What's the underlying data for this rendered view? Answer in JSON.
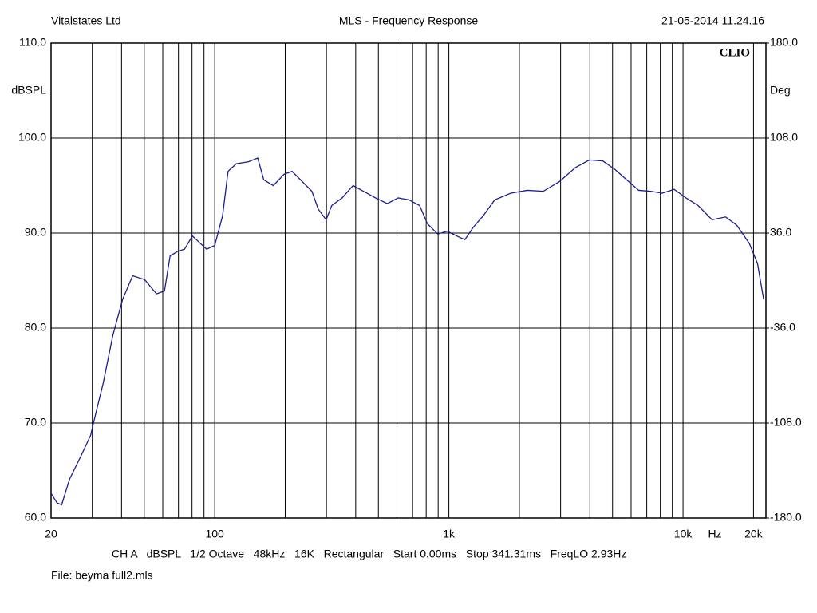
{
  "chart_data": {
    "type": "line",
    "title": "MLS - Frequency Response",
    "company": "Vitalstates Ltd",
    "timestamp": "21-05-2014 11.24.16",
    "logo": "CLIO",
    "ylabel": "dBSPL",
    "y2label": "Deg",
    "xlabel": "Hz",
    "footer": "CH A   dBSPL   1/2 Octave   48kHz   16K   Rectangular   Start 0.00ms   Stop 341.31ms   FreqLO 2.93Hz",
    "file": "File: beyma full2.mls",
    "xscale": "log",
    "grid": true,
    "xlim": [
      20,
      22600
    ],
    "xticks": [
      20,
      100,
      {
        "value": 1000,
        "label": "1k"
      },
      {
        "value": 10000,
        "label": "10k"
      },
      {
        "value": 20000,
        "label": "20k"
      }
    ],
    "xgrid_minor": [
      30,
      40,
      50,
      60,
      70,
      80,
      90,
      200,
      300,
      400,
      500,
      600,
      700,
      800,
      900,
      2000,
      3000,
      4000,
      5000,
      6000,
      7000,
      8000,
      9000
    ],
    "ylim": [
      60,
      110
    ],
    "yticks": [
      {
        "value": 110,
        "label": "110.0"
      },
      {
        "value": 100,
        "label": "100.0"
      },
      {
        "value": 90,
        "label": "90.0"
      },
      {
        "value": 80,
        "label": "80.0"
      },
      {
        "value": 70,
        "label": "70.0"
      },
      {
        "value": 60,
        "label": "60.0"
      }
    ],
    "y2lim": [
      -180,
      180
    ],
    "y2ticks": [
      {
        "value": 180,
        "label": "180.0"
      },
      {
        "value": 108,
        "label": "108.0"
      },
      {
        "value": 36,
        "label": "36.0"
      },
      {
        "value": -36,
        "label": "-36.0"
      },
      {
        "value": -108,
        "label": "-108.0"
      },
      {
        "value": -180,
        "label": "-180.0"
      }
    ],
    "x": [
      20,
      21.2,
      22.2,
      24,
      26.8,
      29.5,
      30.9,
      33.4,
      36.7,
      40.4,
      44.6,
      50.2,
      56.4,
      61,
      64.5,
      69.8,
      74.3,
      80.3,
      86.9,
      92.4,
      100,
      108,
      114,
      123.6,
      139,
      152.6,
      162,
      178,
      198,
      214,
      237,
      260,
      277,
      299,
      316,
      350,
      390,
      432,
      486,
      546,
      607,
      675,
      750,
      809,
      896,
      984,
      1080,
      1170,
      1270,
      1400,
      1570,
      1840,
      2160,
      2530,
      2960,
      3470,
      3980,
      4540,
      5120,
      5750,
      6470,
      7270,
      8160,
      9160,
      10300,
      11600,
      13300,
      15200,
      17000,
      19200,
      20800,
      22100
    ],
    "series": [
      {
        "name": "CH A",
        "color": "#1c1c8e",
        "values": [
          62.6,
          61.6,
          61.4,
          64.1,
          66.5,
          68.7,
          70.8,
          74.2,
          79.2,
          83.0,
          85.5,
          85.1,
          83.6,
          83.9,
          87.6,
          88.1,
          88.3,
          89.7,
          88.9,
          88.3,
          88.7,
          91.8,
          96.5,
          97.3,
          97.5,
          97.9,
          95.6,
          95.0,
          96.2,
          96.5,
          95.4,
          94.4,
          92.5,
          91.4,
          92.9,
          93.7,
          95.0,
          94.4,
          93.7,
          93.1,
          93.7,
          93.5,
          92.9,
          91.0,
          89.9,
          90.2,
          89.7,
          89.3,
          90.6,
          91.8,
          93.5,
          94.2,
          94.5,
          94.4,
          95.4,
          96.9,
          97.7,
          97.6,
          96.7,
          95.6,
          94.5,
          94.4,
          94.2,
          94.6,
          93.7,
          92.9,
          91.4,
          91.7,
          90.8,
          88.9,
          86.8,
          83.0
        ]
      }
    ]
  }
}
